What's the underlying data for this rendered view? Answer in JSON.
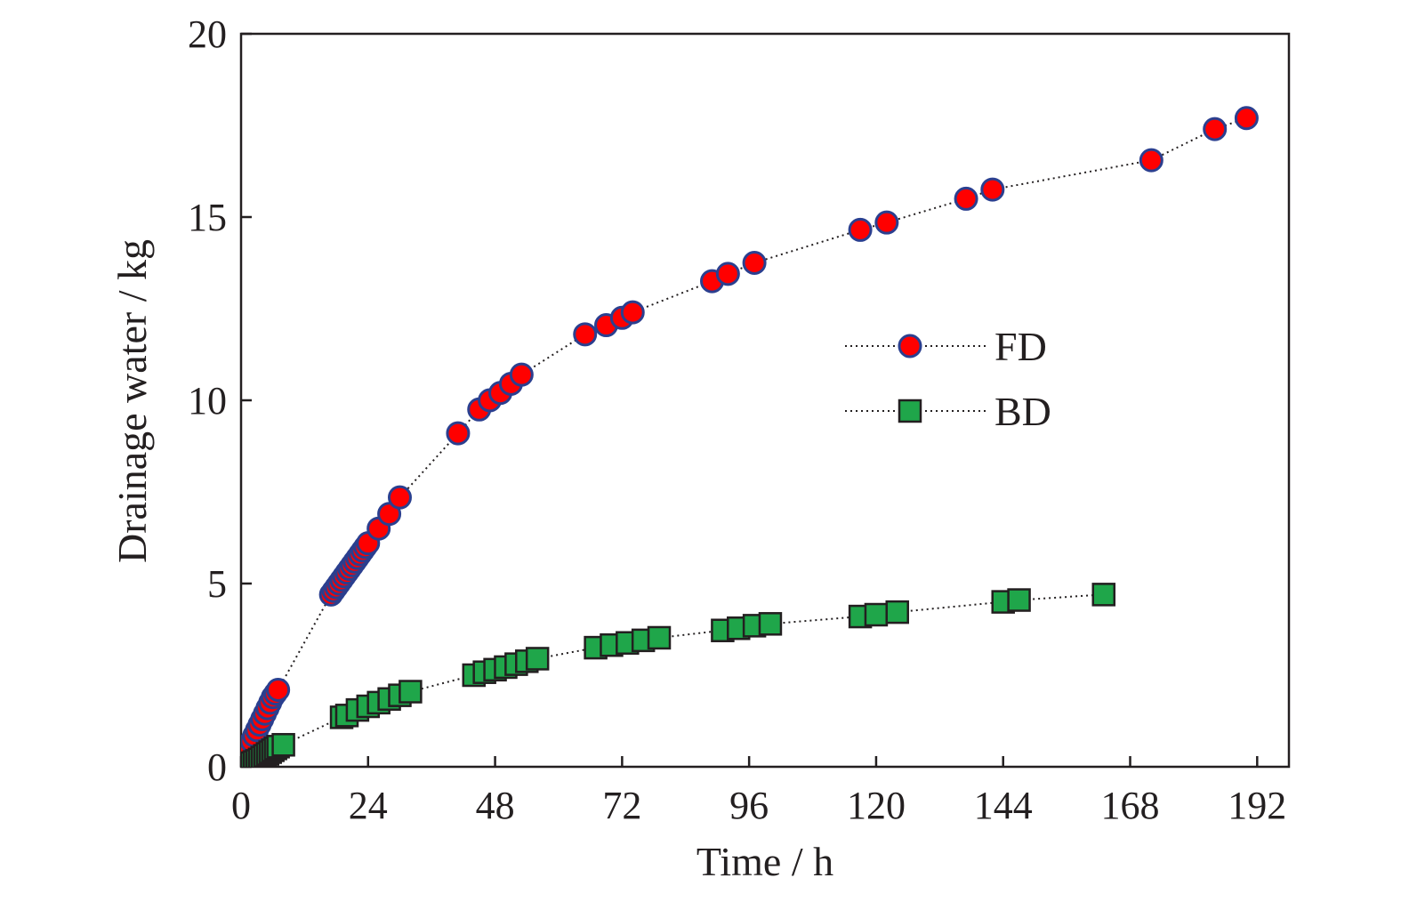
{
  "chart_data": {
    "type": "scatter",
    "title": "",
    "xlabel": "Time / h",
    "ylabel": "Drainage water / kg",
    "xlim": [
      0,
      198
    ],
    "ylim": [
      0,
      20
    ],
    "xticks": [
      0,
      24,
      48,
      72,
      96,
      120,
      144,
      168,
      192
    ],
    "yticks": [
      0,
      5,
      10,
      15,
      20
    ],
    "grid": false,
    "legend_position": "center-right",
    "series": [
      {
        "name": "FD",
        "marker": "circle",
        "line_style": "dotted",
        "fill_color": "#ff0000",
        "edge_color": "#2b3f8f",
        "points": [
          [
            0,
            0
          ],
          [
            0.5,
            0.15
          ],
          [
            1,
            0.35
          ],
          [
            1.5,
            0.55
          ],
          [
            2,
            0.7
          ],
          [
            2.5,
            0.85
          ],
          [
            3,
            1.0
          ],
          [
            3.5,
            1.15
          ],
          [
            4,
            1.3
          ],
          [
            4.5,
            1.45
          ],
          [
            5,
            1.6
          ],
          [
            5.5,
            1.75
          ],
          [
            6,
            1.9
          ],
          [
            6.5,
            2.0
          ],
          [
            7,
            2.1
          ],
          [
            17,
            4.7
          ],
          [
            17.5,
            4.8
          ],
          [
            18,
            4.9
          ],
          [
            18.5,
            5.0
          ],
          [
            19,
            5.1
          ],
          [
            19.5,
            5.2
          ],
          [
            20,
            5.3
          ],
          [
            20.5,
            5.4
          ],
          [
            21,
            5.5
          ],
          [
            21.5,
            5.6
          ],
          [
            22,
            5.7
          ],
          [
            22.5,
            5.8
          ],
          [
            23,
            5.9
          ],
          [
            23.5,
            6.0
          ],
          [
            24,
            6.1
          ],
          [
            26,
            6.5
          ],
          [
            28,
            6.9
          ],
          [
            30,
            7.35
          ],
          [
            41,
            9.1
          ],
          [
            45,
            9.75
          ],
          [
            47,
            10.0
          ],
          [
            49,
            10.2
          ],
          [
            51,
            10.45
          ],
          [
            53,
            10.7
          ],
          [
            65,
            11.8
          ],
          [
            69,
            12.05
          ],
          [
            72,
            12.25
          ],
          [
            74,
            12.4
          ],
          [
            89,
            13.25
          ],
          [
            92,
            13.45
          ],
          [
            97,
            13.75
          ],
          [
            117,
            14.65
          ],
          [
            122,
            14.85
          ],
          [
            137,
            15.5
          ],
          [
            142,
            15.75
          ],
          [
            172,
            16.55
          ],
          [
            184,
            17.4
          ],
          [
            190,
            17.7
          ]
        ]
      },
      {
        "name": "BD",
        "marker": "square",
        "line_style": "dotted",
        "fill_color": "#1fa64a",
        "edge_color": "#231f20",
        "points": [
          [
            0,
            0
          ],
          [
            0.5,
            0.02
          ],
          [
            1,
            0.05
          ],
          [
            1.5,
            0.08
          ],
          [
            2,
            0.1
          ],
          [
            2.5,
            0.13
          ],
          [
            3,
            0.16
          ],
          [
            3.5,
            0.2
          ],
          [
            4,
            0.25
          ],
          [
            4.5,
            0.3
          ],
          [
            5,
            0.35
          ],
          [
            5.5,
            0.4
          ],
          [
            6,
            0.45
          ],
          [
            6.5,
            0.5
          ],
          [
            7,
            0.55
          ],
          [
            8,
            0.6
          ],
          [
            19,
            1.35
          ],
          [
            20,
            1.4
          ],
          [
            22,
            1.55
          ],
          [
            24,
            1.65
          ],
          [
            26,
            1.75
          ],
          [
            28,
            1.85
          ],
          [
            30,
            1.95
          ],
          [
            32,
            2.05
          ],
          [
            44,
            2.5
          ],
          [
            46,
            2.58
          ],
          [
            48,
            2.65
          ],
          [
            50,
            2.72
          ],
          [
            52,
            2.8
          ],
          [
            54,
            2.88
          ],
          [
            56,
            2.95
          ],
          [
            67,
            3.25
          ],
          [
            70,
            3.32
          ],
          [
            73,
            3.38
          ],
          [
            76,
            3.45
          ],
          [
            79,
            3.52
          ],
          [
            91,
            3.72
          ],
          [
            94,
            3.78
          ],
          [
            97,
            3.85
          ],
          [
            100,
            3.9
          ],
          [
            117,
            4.1
          ],
          [
            120,
            4.15
          ],
          [
            124,
            4.22
          ],
          [
            144,
            4.5
          ],
          [
            147,
            4.55
          ],
          [
            163,
            4.7
          ]
        ]
      }
    ]
  }
}
